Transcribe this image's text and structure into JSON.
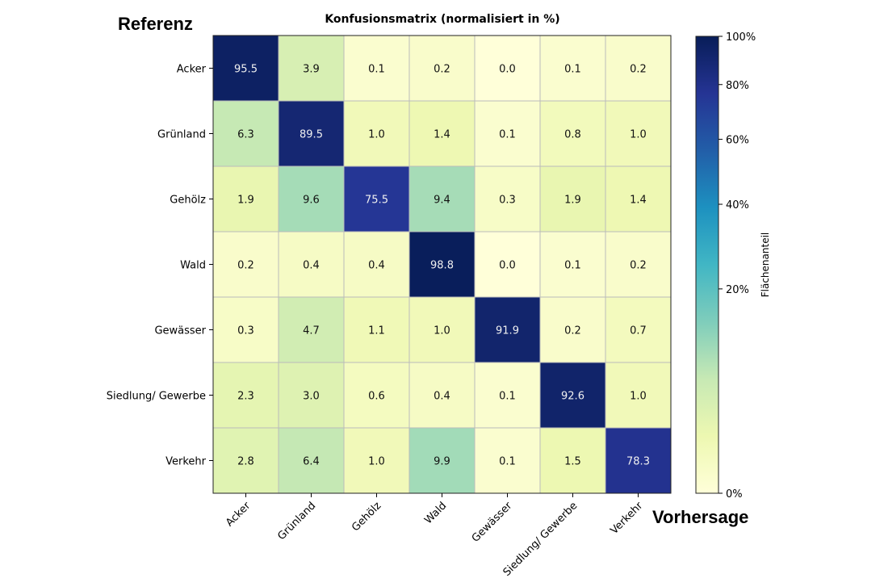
{
  "annotations": {
    "reference_label": "Referenz",
    "prediction_label": "Vorhersage"
  },
  "chart_data": {
    "type": "heatmap",
    "title": "Konfusionsmatrix (normalisiert in %)",
    "xlabel": "Vorhersage",
    "ylabel": "Referenz",
    "x_categories": [
      "Acker",
      "Grünland",
      "Gehölz",
      "Wald",
      "Gewässer",
      "Siedlung/ Gewerbe",
      "Verkehr"
    ],
    "y_categories": [
      "Acker",
      "Grünland",
      "Gehölz",
      "Wald",
      "Gewässer",
      "Siedlung/ Gewerbe",
      "Verkehr"
    ],
    "values": [
      [
        95.5,
        3.9,
        0.1,
        0.2,
        0.0,
        0.1,
        0.2
      ],
      [
        6.3,
        89.5,
        1.0,
        1.4,
        0.1,
        0.8,
        1.0
      ],
      [
        1.9,
        9.6,
        75.5,
        9.4,
        0.3,
        1.9,
        1.4
      ],
      [
        0.2,
        0.4,
        0.4,
        98.8,
        0.0,
        0.1,
        0.2
      ],
      [
        0.3,
        4.7,
        1.1,
        1.0,
        91.9,
        0.2,
        0.7
      ],
      [
        2.3,
        3.0,
        0.6,
        0.4,
        0.1,
        92.6,
        1.0
      ],
      [
        2.8,
        6.4,
        1.0,
        9.9,
        0.1,
        1.5,
        78.3
      ]
    ],
    "value_format": "0.0",
    "colormap": "YlGnBu",
    "color_scale": "power (gamma 0.5)",
    "vmin": 0,
    "vmax": 100,
    "colorbar": {
      "label": "Flächenanteil",
      "ticks": [
        0,
        20,
        40,
        60,
        80,
        100
      ],
      "tick_labels": [
        "0%",
        "20%",
        "40%",
        "60%",
        "80%",
        "100%"
      ]
    },
    "grid_color": "#bbbbbb",
    "text_dark": "#111111",
    "text_light": "#f0f0f0"
  }
}
